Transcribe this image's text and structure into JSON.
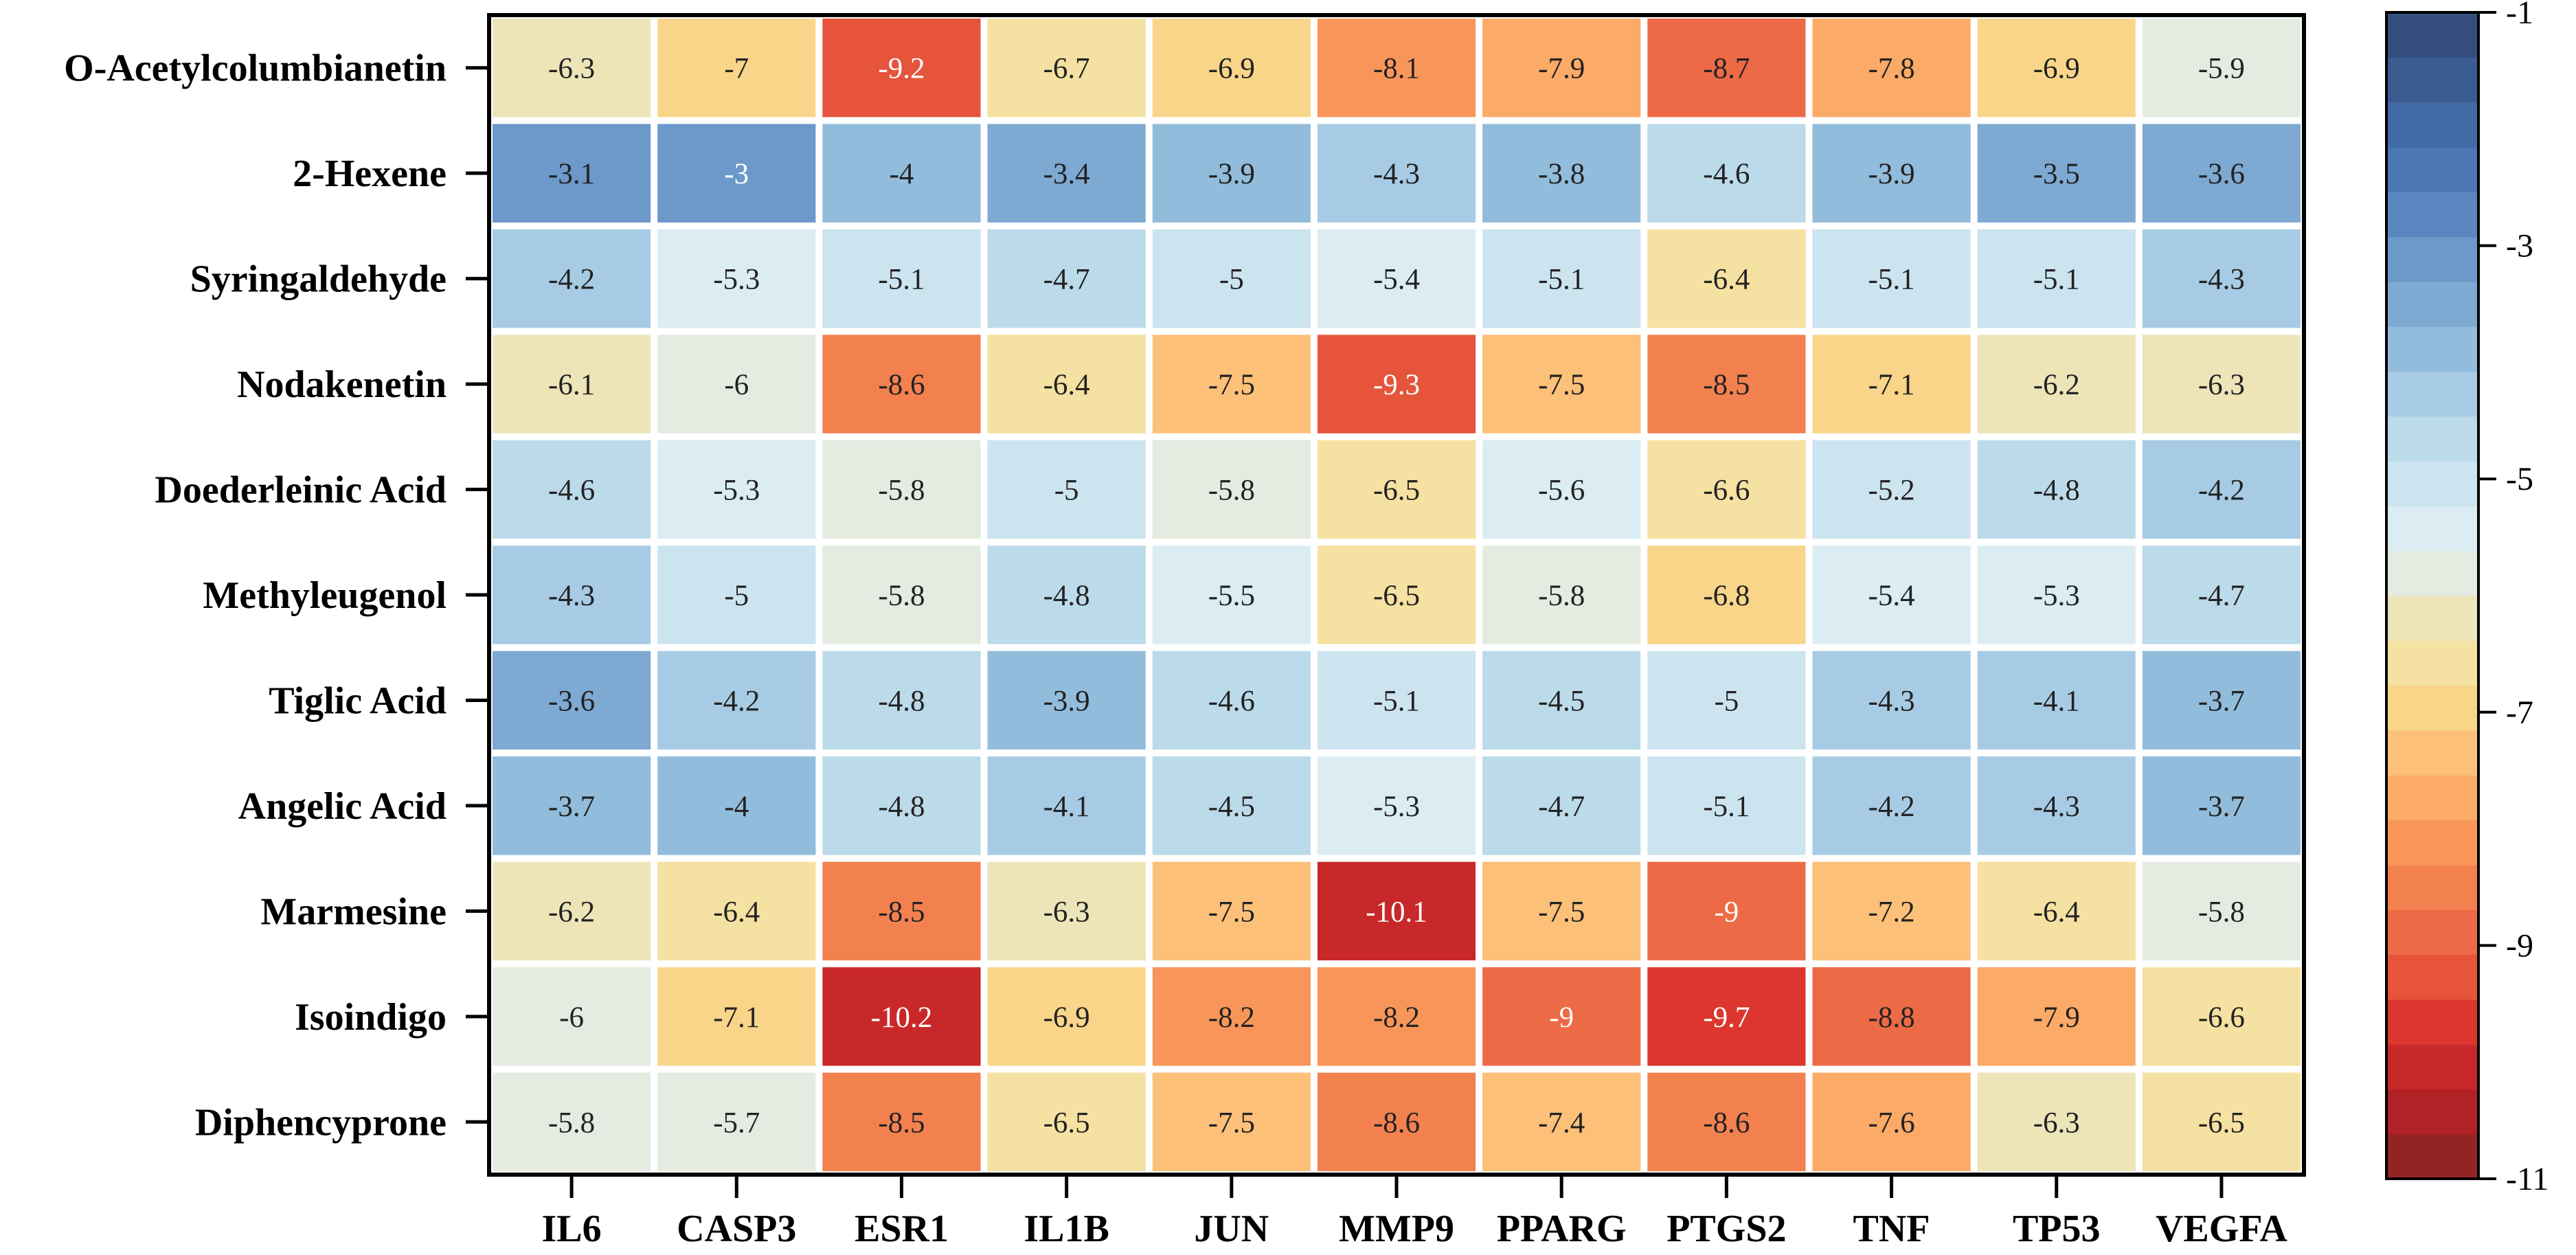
{
  "chart_data": {
    "type": "heatmap",
    "title": "",
    "xlabel": "",
    "ylabel": "",
    "columns": [
      "IL6",
      "CASP3",
      "ESR1",
      "IL1B",
      "JUN",
      "MMP9",
      "PPARG",
      "PTGS2",
      "TNF",
      "TP53",
      "VEGFA"
    ],
    "rows": [
      "O-Acetylcolumbianetin",
      "2-Hexene",
      "Syringaldehyde",
      "Nodakenetin",
      "Doederleinic Acid",
      "Methyleugenol",
      "Tiglic Acid",
      "Angelic Acid",
      "Marmesine",
      "Isoindigo",
      "Diphencyprone"
    ],
    "values": [
      [
        -6.3,
        -7,
        -9.2,
        -6.7,
        -6.9,
        -8.1,
        -7.9,
        -8.7,
        -7.8,
        -6.9,
        -5.9
      ],
      [
        -3.1,
        -3,
        -4,
        -3.4,
        -3.9,
        -4.3,
        -3.8,
        -4.6,
        -3.9,
        -3.5,
        -3.6
      ],
      [
        -4.2,
        -5.3,
        -5.1,
        -4.7,
        -5,
        -5.4,
        -5.1,
        -6.4,
        -5.1,
        -5.1,
        -4.3
      ],
      [
        -6.1,
        -6,
        -8.6,
        -6.4,
        -7.5,
        -9.3,
        -7.5,
        -8.5,
        -7.1,
        -6.2,
        -6.3
      ],
      [
        -4.6,
        -5.3,
        -5.8,
        -5,
        -5.8,
        -6.5,
        -5.6,
        -6.6,
        -5.2,
        -4.8,
        -4.2
      ],
      [
        -4.3,
        -5,
        -5.8,
        -4.8,
        -5.5,
        -6.5,
        -5.8,
        -6.8,
        -5.4,
        -5.3,
        -4.7
      ],
      [
        -3.6,
        -4.2,
        -4.8,
        -3.9,
        -4.6,
        -5.1,
        -4.5,
        -5,
        -4.3,
        -4.1,
        -3.7
      ],
      [
        -3.7,
        -4,
        -4.8,
        -4.1,
        -4.5,
        -5.3,
        -4.7,
        -5.1,
        -4.2,
        -4.3,
        -3.7
      ],
      [
        -6.2,
        -6.4,
        -8.5,
        -6.3,
        -7.5,
        -10.1,
        -7.5,
        -9,
        -7.2,
        -6.4,
        -5.8
      ],
      [
        -6,
        -7.1,
        -10.2,
        -6.9,
        -8.2,
        -8.2,
        -9,
        -9.7,
        -8.8,
        -7.9,
        -6.6
      ],
      [
        -5.8,
        -5.7,
        -8.5,
        -6.5,
        -7.5,
        -8.6,
        -7.4,
        -8.6,
        -7.6,
        -6.3,
        -6.5
      ]
    ],
    "colorbar": {
      "min": -11,
      "max": -1,
      "ticks": [
        -1,
        -3,
        -5,
        -7,
        -9,
        -11
      ],
      "tick_labels": [
        "-1",
        "-3",
        "-5",
        "-7",
        "-9",
        "-11"
      ],
      "colors": [
        "#942424",
        "#b02226",
        "#c8282a",
        "#dc362e",
        "#e5543b",
        "#ed6a46",
        "#f3814f",
        "#f89659",
        "#fbaa67",
        "#fcc078",
        "#f9d58a",
        "#f5e1a1",
        "#ede4b8",
        "#e4ebe0",
        "#dbedf2",
        "#ccE4ef",
        "#bbdaea",
        "#a7cbe4",
        "#92bcdb",
        "#7ea9d2",
        "#6c98ca",
        "#5b87c0",
        "#4c76b4",
        "#426aa5",
        "#3b5c91",
        "#344f7d"
      ]
    },
    "legend_position": "right"
  }
}
